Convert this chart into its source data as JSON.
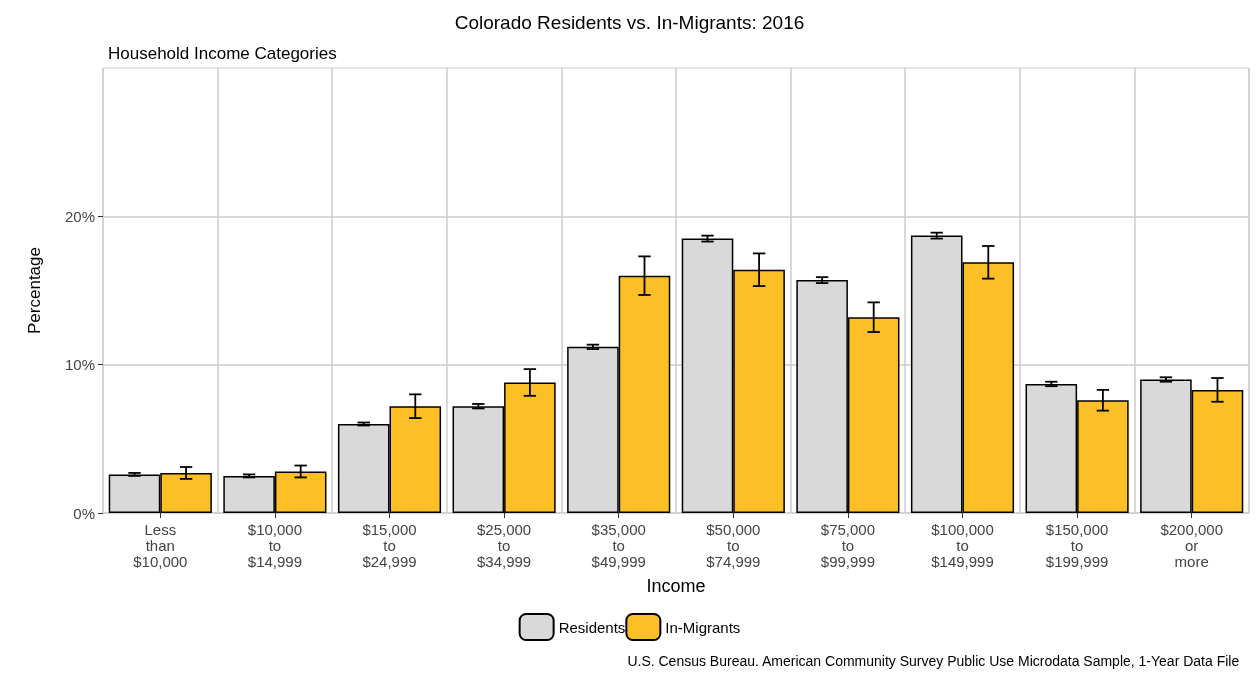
{
  "chart_data": {
    "type": "bar",
    "title": "Colorado Residents vs. In-Migrants: 2016",
    "subtitle": "Household Income Categories",
    "xlabel": "Income",
    "ylabel": "Percentage",
    "categories": [
      "Less\nthan\n$10,000",
      "$10,000\nto\n$14,999",
      "$15,000\nto\n$24,999",
      "$25,000\nto\n$34,999",
      "$35,000\nto\n$49,999",
      "$50,000\nto\n$74,999",
      "$75,000\nto\n$99,999",
      "$100,000\nto\n$149,999",
      "$150,000\nto\n$199,999",
      "$200,000\nor\nmore"
    ],
    "series": [
      {
        "name": "Residents",
        "color": "#d9d9d9",
        "values": [
          2.6,
          2.5,
          6.0,
          7.2,
          11.2,
          18.5,
          15.7,
          18.7,
          8.7,
          9.0
        ],
        "errors": [
          0.1,
          0.1,
          0.1,
          0.15,
          0.15,
          0.2,
          0.2,
          0.2,
          0.15,
          0.15
        ]
      },
      {
        "name": "In-Migrants",
        "color": "#fdbf26",
        "values": [
          2.7,
          2.8,
          7.2,
          8.8,
          16.0,
          16.4,
          13.2,
          16.9,
          7.6,
          8.3
        ],
        "errors": [
          0.4,
          0.4,
          0.8,
          0.9,
          1.3,
          1.1,
          1.0,
          1.1,
          0.7,
          0.8
        ]
      }
    ],
    "ylim": [
      0,
      30
    ],
    "yticks": [
      {
        "value": 0,
        "label": "0%"
      },
      {
        "value": 10,
        "label": "10%"
      },
      {
        "value": 20,
        "label": "20%"
      }
    ],
    "grid": true,
    "legend": "bottom",
    "annotations": [
      "U.S. Census Bureau. American Community Survey Public Use Microdata Sample, 1-Year Data File"
    ]
  }
}
